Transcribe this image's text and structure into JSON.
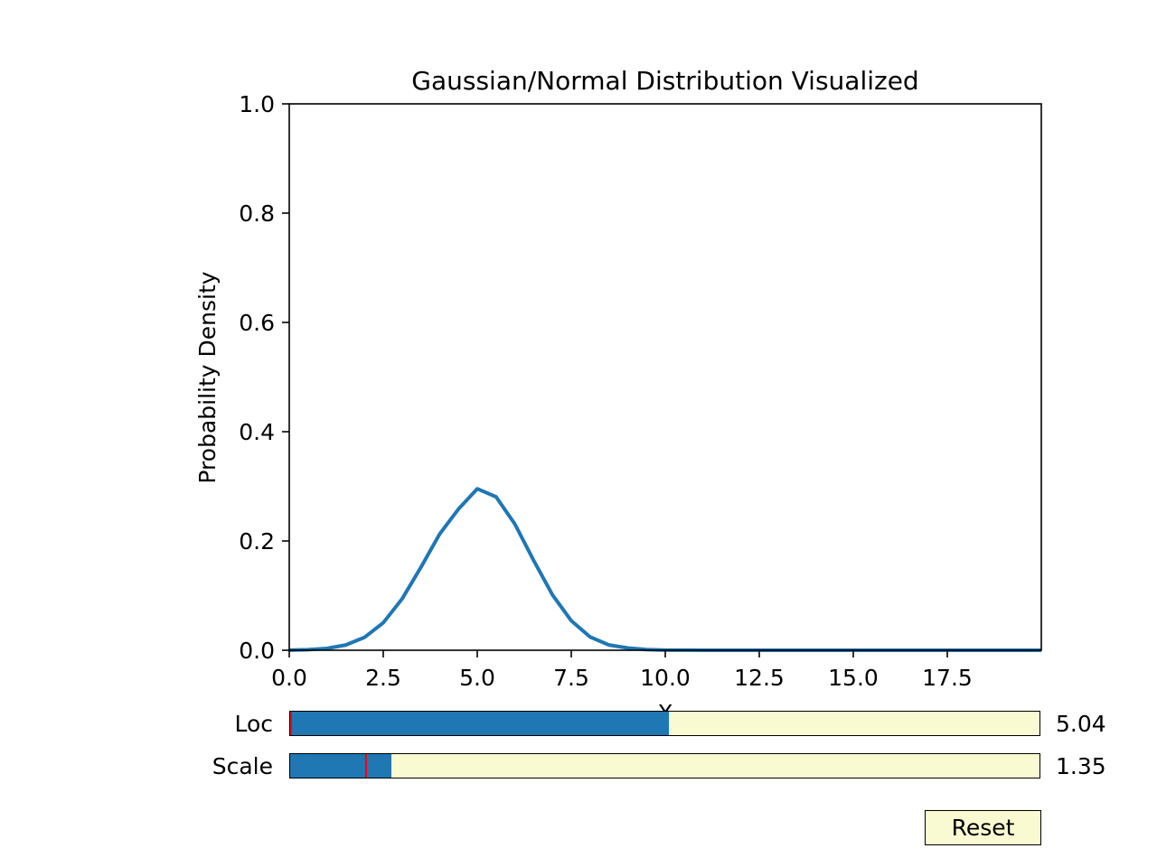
{
  "chart_data": {
    "type": "line",
    "title": "Gaussian/Normal Distribution Visualized",
    "xlabel": "X",
    "ylabel": "Probability Density",
    "xlim": [
      0,
      20
    ],
    "ylim": [
      0,
      1.0
    ],
    "xticks": [
      "0.0",
      "2.5",
      "5.0",
      "7.5",
      "10.0",
      "12.5",
      "15.0",
      "17.5"
    ],
    "yticks": [
      "0.0",
      "0.2",
      "0.4",
      "0.6",
      "0.8",
      "1.0"
    ],
    "grid": false,
    "series": [
      {
        "color": "#1f77b4",
        "distribution": "normal",
        "loc": 5.04,
        "scale": 1.35,
        "x": [
          0,
          0.5,
          1,
          1.5,
          2,
          2.5,
          3,
          3.5,
          4,
          4.5,
          5,
          5.5,
          6,
          6.5,
          7,
          7.5,
          8,
          8.5,
          9,
          9.5,
          10,
          11,
          12,
          14,
          16,
          18,
          20
        ],
        "y": [
          0.0003,
          0.0011,
          0.0033,
          0.0095,
          0.0235,
          0.0503,
          0.0939,
          0.1517,
          0.2127,
          0.2584,
          0.2955,
          0.2808,
          0.231,
          0.1643,
          0.1014,
          0.0541,
          0.0244,
          0.0097,
          0.0041,
          0.0012,
          0.0003,
          0.0,
          0.0,
          0.0,
          0.0,
          0.0,
          0.0
        ]
      }
    ]
  },
  "controls": {
    "loc": {
      "label": "Loc",
      "value_text": "5.04",
      "fraction": 0.504,
      "initial_fraction": 0.0,
      "color": "#1f77b4"
    },
    "scale": {
      "label": "Scale",
      "value_text": "1.35",
      "fraction": 0.135,
      "initial_fraction": 0.1,
      "color": "#1f77b4"
    },
    "reset_label": "Reset"
  }
}
